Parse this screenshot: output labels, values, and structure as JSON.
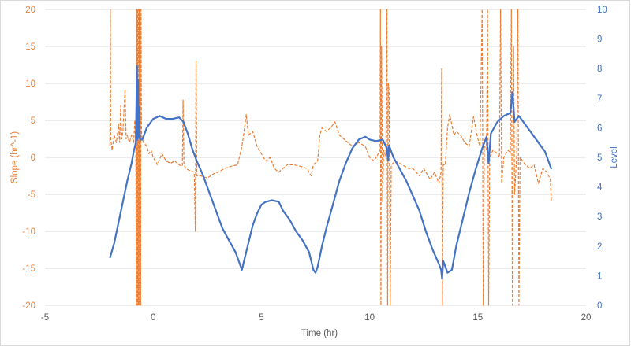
{
  "chart_data": {
    "type": "line",
    "title": "",
    "xlabel": "Time (hr)",
    "ylabel": "Slope (hr^-1)",
    "y2label": "Level",
    "xlim": [
      -5,
      20
    ],
    "ylim": [
      -20,
      20
    ],
    "y2lim": [
      0,
      10
    ],
    "x_ticks": [
      "-5",
      "0",
      "5",
      "10",
      "15",
      "20"
    ],
    "y_ticks": [
      "20",
      "15",
      "10",
      "5",
      "0",
      "-5",
      "-10",
      "-15",
      "-20"
    ],
    "y2_ticks": [
      "10",
      "9",
      "8",
      "7",
      "6",
      "5",
      "4",
      "3",
      "2",
      "1",
      "0"
    ],
    "grid": "horizontal",
    "legend": "none",
    "series": [
      {
        "axis": "left",
        "style": "dashed",
        "color": "#ed7d31",
        "points": [
          [
            -2.0,
            1.5
          ],
          [
            -1.98,
            20
          ],
          [
            -1.96,
            2.5
          ],
          [
            -1.9,
            1.0
          ],
          [
            -1.8,
            3.0
          ],
          [
            -1.7,
            2.0
          ],
          [
            -1.6,
            4.5
          ],
          [
            -1.55,
            2.0
          ],
          [
            -1.5,
            7.0
          ],
          [
            -1.45,
            2.5
          ],
          [
            -1.4,
            3.5
          ],
          [
            -1.3,
            9.2
          ],
          [
            -1.25,
            2.5
          ],
          [
            -1.2,
            3.0
          ],
          [
            -1.1,
            2.0
          ],
          [
            -1.0,
            3.0
          ],
          [
            -0.9,
            2.0
          ],
          [
            -0.85,
            5.0
          ],
          [
            -0.8,
            1.5
          ],
          [
            -0.78,
            -20
          ],
          [
            -0.76,
            20
          ],
          [
            -0.74,
            -20
          ],
          [
            -0.72,
            20
          ],
          [
            -0.7,
            -20
          ],
          [
            -0.68,
            20
          ],
          [
            -0.66,
            -20
          ],
          [
            -0.64,
            20
          ],
          [
            -0.62,
            -20
          ],
          [
            -0.6,
            20
          ],
          [
            -0.58,
            -20
          ],
          [
            -0.56,
            20
          ],
          [
            -0.54,
            3.0
          ],
          [
            -0.45,
            2.0
          ],
          [
            -0.3,
            1.5
          ],
          [
            -0.2,
            0.5
          ],
          [
            -0.1,
            1.0
          ],
          [
            0.0,
            0.0
          ],
          [
            0.2,
            -1.0
          ],
          [
            0.4,
            0.5
          ],
          [
            0.6,
            -0.5
          ],
          [
            0.8,
            -0.8
          ],
          [
            1.0,
            -0.5
          ],
          [
            1.2,
            -1.0
          ],
          [
            1.35,
            -1.2
          ],
          [
            1.38,
            7.8
          ],
          [
            1.42,
            -1.0
          ],
          [
            1.5,
            -1.5
          ],
          [
            1.7,
            -1.8
          ],
          [
            1.9,
            -2.0
          ],
          [
            1.95,
            -10
          ],
          [
            1.98,
            13
          ],
          [
            2.02,
            -2.5
          ],
          [
            2.2,
            -2.5
          ],
          [
            2.5,
            -2.8
          ],
          [
            2.8,
            -2.2
          ],
          [
            3.0,
            -2.0
          ],
          [
            3.3,
            -1.5
          ],
          [
            3.6,
            -1.2
          ],
          [
            3.9,
            -1.0
          ],
          [
            4.1,
            1.5
          ],
          [
            4.2,
            3.5
          ],
          [
            4.3,
            5.8
          ],
          [
            4.4,
            3.0
          ],
          [
            4.6,
            3.5
          ],
          [
            4.8,
            1.5
          ],
          [
            5.0,
            0.5
          ],
          [
            5.2,
            -0.5
          ],
          [
            5.4,
            0.0
          ],
          [
            5.6,
            -1.5
          ],
          [
            5.8,
            -2.0
          ],
          [
            6.0,
            -1.5
          ],
          [
            6.2,
            -1.0
          ],
          [
            6.5,
            -1.0
          ],
          [
            6.8,
            -1.2
          ],
          [
            7.1,
            -1.5
          ],
          [
            7.3,
            -2.5
          ],
          [
            7.4,
            -1.0
          ],
          [
            7.6,
            -0.5
          ],
          [
            7.7,
            3.0
          ],
          [
            7.8,
            4.0
          ],
          [
            8.0,
            3.5
          ],
          [
            8.2,
            4.0
          ],
          [
            8.4,
            4.8
          ],
          [
            8.6,
            3.0
          ],
          [
            8.8,
            2.5
          ],
          [
            9.0,
            2.0
          ],
          [
            9.2,
            1.5
          ],
          [
            9.5,
            2.0
          ],
          [
            9.8,
            1.5
          ],
          [
            10.0,
            0.0
          ],
          [
            10.2,
            -0.5
          ],
          [
            10.4,
            0.5
          ],
          [
            10.48,
            1.0
          ],
          [
            10.5,
            20
          ],
          [
            10.52,
            -20
          ],
          [
            10.55,
            15
          ],
          [
            10.6,
            -6.0
          ],
          [
            10.65,
            1.0
          ],
          [
            10.75,
            0.0
          ],
          [
            10.8,
            20
          ],
          [
            10.83,
            -20
          ],
          [
            10.86,
            10
          ],
          [
            10.9,
            9.0
          ],
          [
            10.95,
            -20
          ],
          [
            11.0,
            -1.0
          ],
          [
            11.2,
            -0.5
          ],
          [
            11.5,
            -1.0
          ],
          [
            11.8,
            -1.5
          ],
          [
            12.0,
            -1.5
          ],
          [
            12.3,
            -2.5
          ],
          [
            12.5,
            -1.5
          ],
          [
            12.8,
            -3.0
          ],
          [
            13.0,
            -2.0
          ],
          [
            13.2,
            -3.5
          ],
          [
            13.3,
            -2.0
          ],
          [
            13.33,
            12
          ],
          [
            13.36,
            -20
          ],
          [
            13.4,
            -1.0
          ],
          [
            13.5,
            -1.0
          ],
          [
            13.6,
            4.0
          ],
          [
            13.7,
            5.8
          ],
          [
            13.9,
            3.0
          ],
          [
            14.0,
            3.5
          ],
          [
            14.2,
            3.0
          ],
          [
            14.4,
            2.0
          ],
          [
            14.6,
            1.5
          ],
          [
            14.8,
            5.5
          ],
          [
            15.0,
            2.5
          ],
          [
            15.1,
            1.5
          ],
          [
            15.2,
            20
          ],
          [
            15.25,
            -20
          ],
          [
            15.3,
            1.5
          ],
          [
            15.4,
            1.0
          ],
          [
            15.45,
            20
          ],
          [
            15.5,
            -20
          ],
          [
            15.55,
            0.0
          ],
          [
            15.7,
            1.0
          ],
          [
            15.9,
            0.5
          ],
          [
            16.0,
            0.0
          ],
          [
            16.05,
            20
          ],
          [
            16.1,
            -3.5
          ],
          [
            16.2,
            0.0
          ],
          [
            16.4,
            1.0
          ],
          [
            16.5,
            0.5
          ],
          [
            16.55,
            20
          ],
          [
            16.6,
            -20
          ],
          [
            16.65,
            15
          ],
          [
            16.7,
            -5.0
          ],
          [
            16.8,
            0.5
          ],
          [
            16.85,
            20
          ],
          [
            16.9,
            -20
          ],
          [
            16.95,
            0.0
          ],
          [
            17.2,
            -1.0
          ],
          [
            17.4,
            -1.5
          ],
          [
            17.6,
            -1.0
          ],
          [
            17.8,
            -3.5
          ],
          [
            18.0,
            -1.5
          ],
          [
            18.2,
            -2.0
          ],
          [
            18.35,
            -3.0
          ],
          [
            18.4,
            -6.0
          ]
        ]
      },
      {
        "axis": "right",
        "style": "solid",
        "color": "#4472c4",
        "points": [
          [
            -2.0,
            1.6
          ],
          [
            -1.8,
            2.1
          ],
          [
            -1.6,
            2.8
          ],
          [
            -1.4,
            3.5
          ],
          [
            -1.2,
            4.2
          ],
          [
            -1.0,
            4.8
          ],
          [
            -0.9,
            5.2
          ],
          [
            -0.8,
            5.5
          ],
          [
            -0.75,
            8.1
          ],
          [
            -0.72,
            5.6
          ],
          [
            -0.7,
            7.6
          ],
          [
            -0.68,
            5.7
          ],
          [
            -0.65,
            6.7
          ],
          [
            -0.62,
            5.8
          ],
          [
            -0.6,
            5.6
          ],
          [
            -0.5,
            5.6
          ],
          [
            -0.3,
            6.0
          ],
          [
            -0.1,
            6.2
          ],
          [
            0.0,
            6.3
          ],
          [
            0.3,
            6.4
          ],
          [
            0.6,
            6.3
          ],
          [
            0.9,
            6.3
          ],
          [
            1.2,
            6.35
          ],
          [
            1.4,
            6.2
          ],
          [
            1.6,
            5.8
          ],
          [
            1.8,
            5.3
          ],
          [
            2.0,
            4.9
          ],
          [
            2.3,
            4.4
          ],
          [
            2.6,
            3.8
          ],
          [
            2.9,
            3.2
          ],
          [
            3.2,
            2.6
          ],
          [
            3.5,
            2.2
          ],
          [
            3.8,
            1.8
          ],
          [
            4.0,
            1.4
          ],
          [
            4.1,
            1.2
          ],
          [
            4.2,
            1.5
          ],
          [
            4.4,
            2.1
          ],
          [
            4.6,
            2.7
          ],
          [
            4.8,
            3.1
          ],
          [
            5.0,
            3.4
          ],
          [
            5.2,
            3.5
          ],
          [
            5.5,
            3.55
          ],
          [
            5.8,
            3.5
          ],
          [
            6.0,
            3.2
          ],
          [
            6.3,
            2.9
          ],
          [
            6.6,
            2.5
          ],
          [
            6.9,
            2.2
          ],
          [
            7.2,
            1.8
          ],
          [
            7.4,
            1.2
          ],
          [
            7.5,
            1.1
          ],
          [
            7.6,
            1.3
          ],
          [
            7.8,
            2.0
          ],
          [
            8.0,
            2.6
          ],
          [
            8.3,
            3.4
          ],
          [
            8.6,
            4.2
          ],
          [
            8.9,
            4.8
          ],
          [
            9.2,
            5.3
          ],
          [
            9.5,
            5.6
          ],
          [
            9.8,
            5.7
          ],
          [
            10.0,
            5.6
          ],
          [
            10.3,
            5.55
          ],
          [
            10.6,
            5.6
          ],
          [
            10.8,
            5.3
          ],
          [
            10.85,
            4.9
          ],
          [
            10.9,
            5.4
          ],
          [
            11.1,
            5.0
          ],
          [
            11.4,
            4.6
          ],
          [
            11.7,
            4.2
          ],
          [
            12.0,
            3.7
          ],
          [
            12.3,
            3.2
          ],
          [
            12.6,
            2.5
          ],
          [
            12.9,
            1.9
          ],
          [
            13.2,
            1.4
          ],
          [
            13.3,
            1.2
          ],
          [
            13.35,
            0.9
          ],
          [
            13.4,
            1.5
          ],
          [
            13.6,
            1.1
          ],
          [
            13.8,
            1.2
          ],
          [
            14.0,
            2.0
          ],
          [
            14.3,
            2.9
          ],
          [
            14.6,
            3.8
          ],
          [
            14.9,
            4.6
          ],
          [
            15.2,
            5.3
          ],
          [
            15.4,
            5.7
          ],
          [
            15.5,
            4.8
          ],
          [
            15.6,
            5.8
          ],
          [
            15.9,
            6.2
          ],
          [
            16.2,
            6.4
          ],
          [
            16.5,
            6.5
          ],
          [
            16.6,
            7.2
          ],
          [
            16.7,
            6.2
          ],
          [
            16.9,
            6.4
          ],
          [
            17.2,
            6.1
          ],
          [
            17.5,
            5.8
          ],
          [
            17.8,
            5.5
          ],
          [
            18.1,
            5.2
          ],
          [
            18.4,
            4.6
          ]
        ]
      }
    ]
  }
}
